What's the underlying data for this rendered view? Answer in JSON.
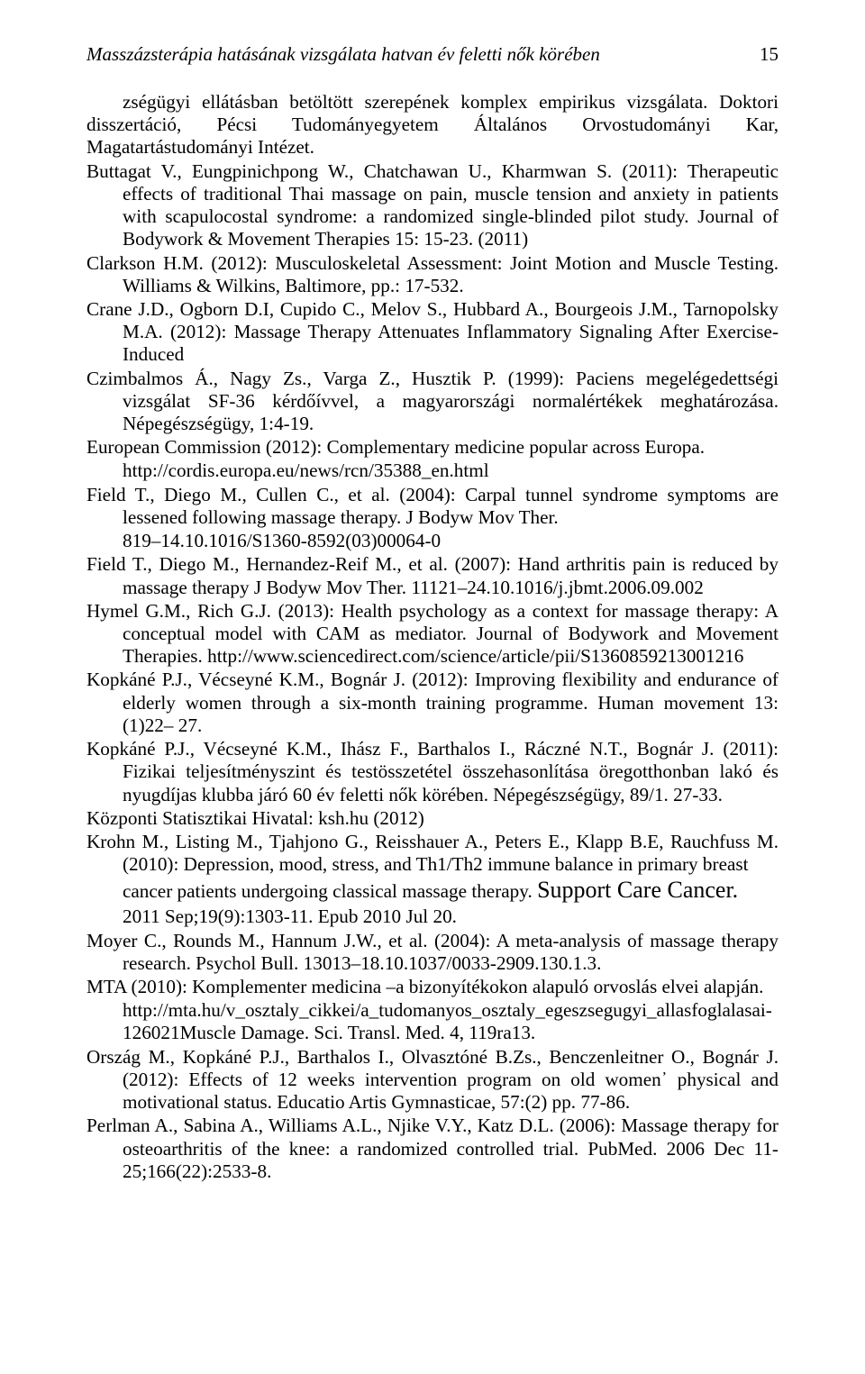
{
  "page": {
    "running_title": "Masszázsterápia hatásának vizsgálata hatvan év feletti nők körében",
    "page_number": "15"
  },
  "refs": {
    "r01a": "zségügyi ellátásban betöltött szerepének komplex empirikus vizsgálata. Doktori disszertáció, Pécsi Tudományegyetem Általános Orvostudományi Kar, Magatartástudományi Intézet.",
    "r02": "Buttagat V., Eungpinichpong W., Chatchawan U., Kharmwan S. (2011): Therapeutic effects of traditional Thai massage on pain, muscle tension and anxiety in patients with scapulocostal syndrome: a randomized single-blinded pilot study. Journal of Bodywork & Movement Therapies 15: 15-23. (2011)",
    "r03": "Clarkson H.M. (2012): Musculoskeletal Assessment: Joint Motion and Muscle Testing. Williams & Wilkins, Baltimore, pp.: 17-532.",
    "r04": "Crane J.D., Ogborn D.I, Cupido C., Melov S., Hubbard A., Bourgeois J.M., Tarnopolsky M.A. (2012): Massage Therapy Attenuates Inflammatory Signaling After Exercise-Induced",
    "r05": "Czimbalmos Á., Nagy Zs., Varga Z., Husztik P. (1999): Paciens megelégedettségi vizsgálat SF-36 kérdőívvel, a magyarországi normalértékek meghatározása. Népegészségügy, 1:4-19.",
    "r06": "European Commission (2012): Complementary medicine popular across Europa.",
    "r06b": "http://cordis.europa.eu/news/rcn/35388_en.html",
    "r07": "Field T., Diego M., Cullen C., et al. (2004): Carpal tunnel syndrome symptoms are lessened following massage therapy. J Bodyw Mov Ther.",
    "r07b": "819–14.10.1016/S1360-8592(03)00064-0",
    "r08": "Field T., Diego M., Hernandez-Reif M., et al. (2007): Hand arthritis pain is reduced by massage therapy J Bodyw Mov Ther. 11121–24.10.1016/j.jbmt.2006.09.002",
    "r09": "Hymel G.M., Rich G.J. (2013): Health psychology as a context for massage therapy: A conceptual model with CAM as mediator. Journal of Bodywork and Movement Therapies. http://www.sciencedirect.com/science/article/pii/S1360859213001216",
    "r10": "Kopkáné P.J., Vécseyné K.M., Bognár J. (2012): Improving flexibility and endurance of elderly women through a six-month training programme. Human movement 13:(1)22– 27.",
    "r11": "Kopkáné P.J., Vécseyné K.M., Ihász F., Barthalos I., Ráczné N.T., Bognár J. (2011): Fizikai teljesítményszint és testösszetétel összehasonlítása öregotthonban lakó és nyugdíjas klubba járó 60 év feletti nők körében. Népegészségügy, 89/1. 27-33.",
    "r12": "Központi Statisztikai Hivatal: ksh.hu (2012)",
    "r13a": "Krohn M., Listing M., Tjahjono G., Reisshauer A., Peters E., Klapp B.E, Rauchfuss M. (2010): Depression, mood, stress, and Th1/Th2 immune balance in primary breast ",
    "r13b_pre": "cancer patients undergoing classical massage therapy. ",
    "r13b_big": "Support Care Cancer.",
    "r13c": "2011 Sep;19(9):1303-11. Epub 2010 Jul 20.",
    "r14": "Moyer C., Rounds M., Hannum J.W., et al. (2004): A meta-analysis of massage therapy research. Psychol Bull. 13013–18.10.1037/0033-2909.130.1.3.",
    "r15": "MTA (2010): Komplementer medicina –a bizonyítékokon alapuló orvoslás elvei alapján.",
    "r15b": "http://mta.hu/v_osztaly_cikkei/a_tudomanyos_osztaly_egeszsegugyi_allasfoglalasai-126021Muscle Damage. Sci. Transl. Med. 4, 119ra13.",
    "r16": "Ország M., Kopkáné P.J., Barthalos I., Olvasztóné B.Zs., Benczenleitner O., Bognár J. (2012): Effects of 12 weeks intervention program on old women᾽ physical and motivational status. Educatio Artis Gymnasticae, 57:(2) pp. 77-86.",
    "r17": "Perlman A., Sabina A., Williams A.L., Njike V.Y., Katz D.L. (2006): Massage therapy for osteoarthritis of the knee: a randomized controlled trial. PubMed. 2006 Dec 11-25;166(22):2533-8."
  }
}
